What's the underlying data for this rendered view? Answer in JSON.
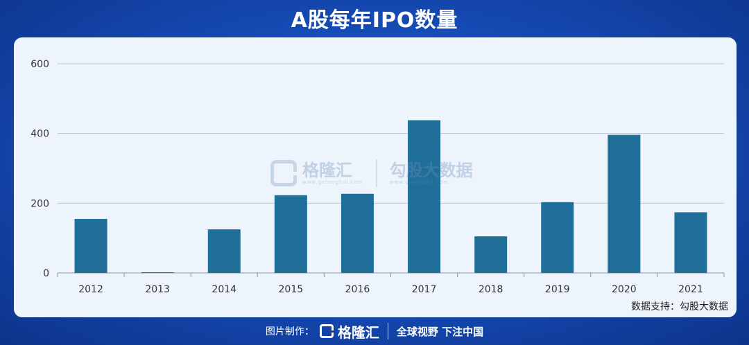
{
  "header": {
    "title": "A股每年IPO数量"
  },
  "watermark": {
    "brand": "格隆汇",
    "brand_url": "www.gelonghui.com",
    "partner": "勾股大数据",
    "partner_url": "www.gogudata.com"
  },
  "source_note": "数据支持：勾股大数据",
  "footer": {
    "made_by_label": "图片制作：",
    "brand": "格隆汇",
    "slogan": "全球视野 下注中国"
  },
  "colors": {
    "bar": "#1f6f99",
    "grid": "#b9c7d6",
    "axis": "#8a9aab",
    "panel": "#eef4fb"
  },
  "chart_data": {
    "type": "bar",
    "categories": [
      "2012",
      "2013",
      "2014",
      "2015",
      "2016",
      "2017",
      "2018",
      "2019",
      "2020",
      "2021"
    ],
    "values": [
      155,
      2,
      125,
      223,
      227,
      438,
      105,
      203,
      396,
      174
    ],
    "ylim": [
      0,
      600
    ],
    "yticks": [
      0,
      200,
      400,
      600
    ],
    "grid": true
  }
}
